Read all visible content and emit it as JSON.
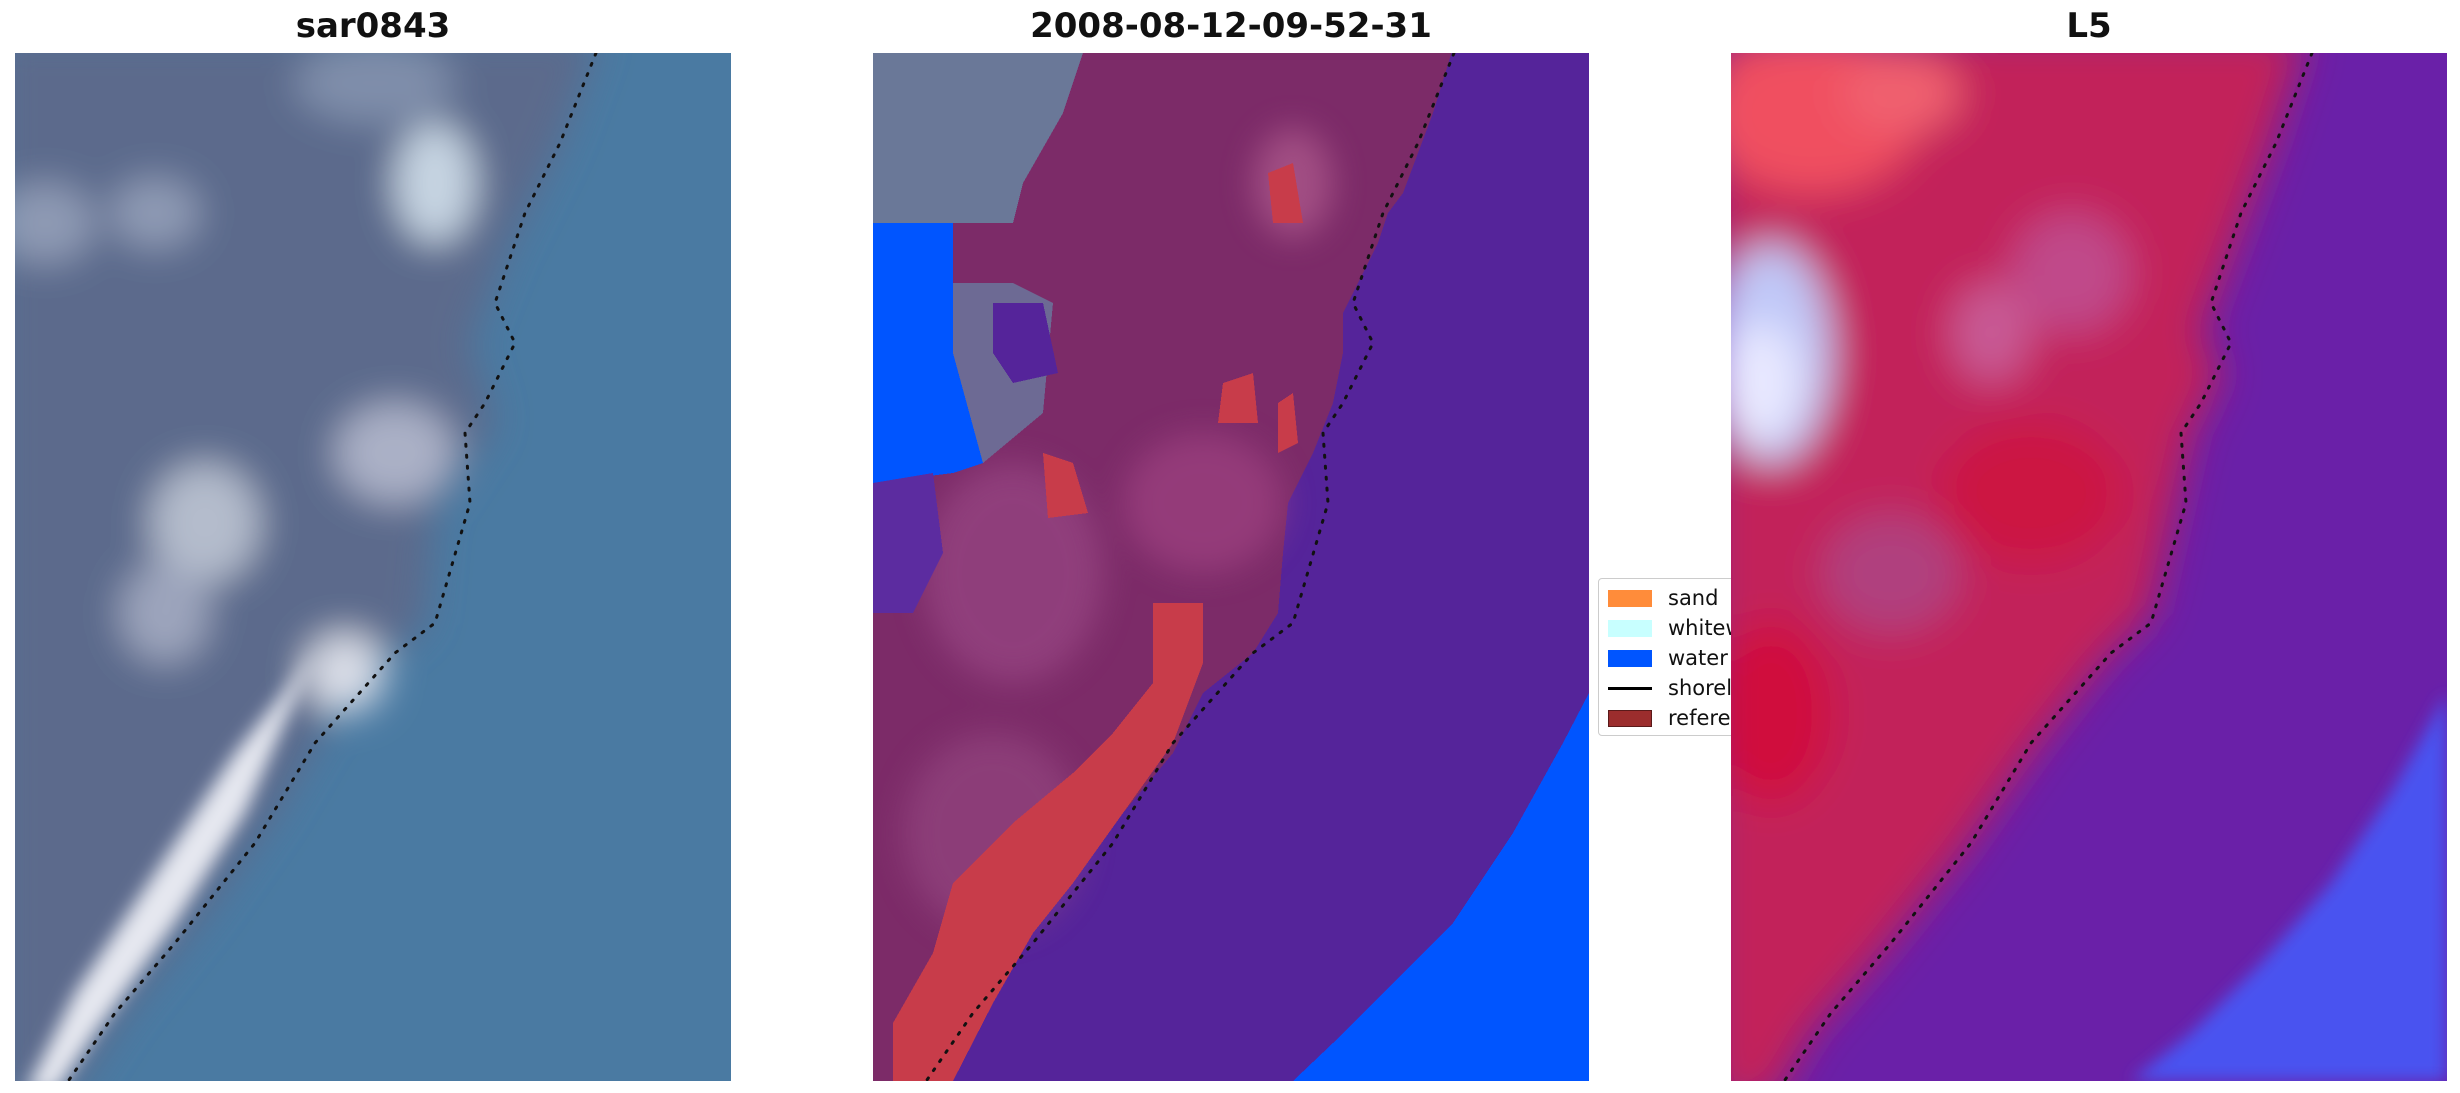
{
  "panels": [
    {
      "title": "sar0843"
    },
    {
      "title": "2008-08-12-09-52-31"
    },
    {
      "title": "L5"
    }
  ],
  "legend": {
    "items": [
      {
        "label": "sand",
        "color": "#ff8c3a"
      },
      {
        "label": "whitewater",
        "color": "#c8ffff"
      },
      {
        "label": "water",
        "color": "#0055ff"
      },
      {
        "label": "shoreline",
        "color": "#000000"
      },
      {
        "label": "reference",
        "color": "#9b2d2d"
      }
    ]
  },
  "colors": {
    "rgb_land": "#5a6a8c",
    "rgb_water": "#4a7ca4",
    "class_overlay_sea": "#55249a",
    "class_overlay_land": "#7d2f6a",
    "class_water": "#0055ff",
    "class_sand": "#c83c4a",
    "index_land": "#c81a48",
    "index_sea": "#6a1fa8",
    "index_water": "#4a52f0"
  }
}
